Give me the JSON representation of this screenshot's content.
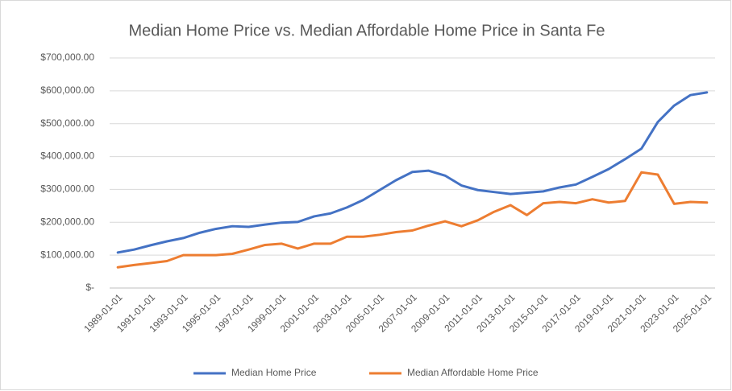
{
  "chart_data": {
    "type": "line",
    "title": "Median Home Price vs. Median Affordable Home Price in Santa Fe",
    "categories": [
      "1989-01-01",
      null,
      "1991-01-01",
      null,
      "1993-01-01",
      null,
      "1995-01-01",
      null,
      "1997-01-01",
      null,
      "1999-01-01",
      null,
      "2001-01-01",
      null,
      "2003-01-01",
      null,
      "2005-01-01",
      null,
      "2007-01-01",
      null,
      "2009-01-01",
      null,
      "2011-01-01",
      null,
      "2013-01-01",
      null,
      "2015-01-01",
      null,
      "2017-01-01",
      null,
      "2019-01-01",
      null,
      "2021-01-01",
      null,
      "2023-01-01",
      null,
      "2025-01-01"
    ],
    "series": [
      {
        "name": "Median Home Price",
        "color": "#4472c4",
        "values": [
          108000,
          117000,
          130000,
          142000,
          152000,
          168000,
          180000,
          188000,
          186000,
          193000,
          199000,
          201000,
          218000,
          227000,
          245000,
          268000,
          298000,
          328000,
          353000,
          357000,
          342000,
          312000,
          298000,
          292000,
          286000,
          290000,
          294000,
          306000,
          315000,
          338000,
          362000,
          392000,
          424000,
          505000,
          555000,
          587000,
          595000
        ]
      },
      {
        "name": "Median Affordable Home Price",
        "color": "#ed7d31",
        "values": [
          63000,
          70000,
          76000,
          82000,
          100000,
          100000,
          100000,
          104000,
          117000,
          131000,
          135000,
          120000,
          135000,
          135000,
          156000,
          156000,
          162000,
          170000,
          175000,
          190000,
          203000,
          188000,
          206000,
          232000,
          252000,
          222000,
          258000,
          262000,
          258000,
          270000,
          260000,
          265000,
          352000,
          345000,
          256000,
          262000,
          260000
        ]
      }
    ],
    "ylim": [
      0,
      700000
    ],
    "yticks": [
      {
        "value": 0,
        "label": "$-"
      },
      {
        "value": 100000,
        "label": "$100,000.00"
      },
      {
        "value": 200000,
        "label": "$200,000.00"
      },
      {
        "value": 300000,
        "label": "$300,000.00"
      },
      {
        "value": 400000,
        "label": "$400,000.00"
      },
      {
        "value": 500000,
        "label": "$500,000.00"
      },
      {
        "value": 600000,
        "label": "$600,000.00"
      },
      {
        "value": 700000,
        "label": "$700,000.00"
      }
    ],
    "grid": true,
    "legend": "bottom"
  }
}
